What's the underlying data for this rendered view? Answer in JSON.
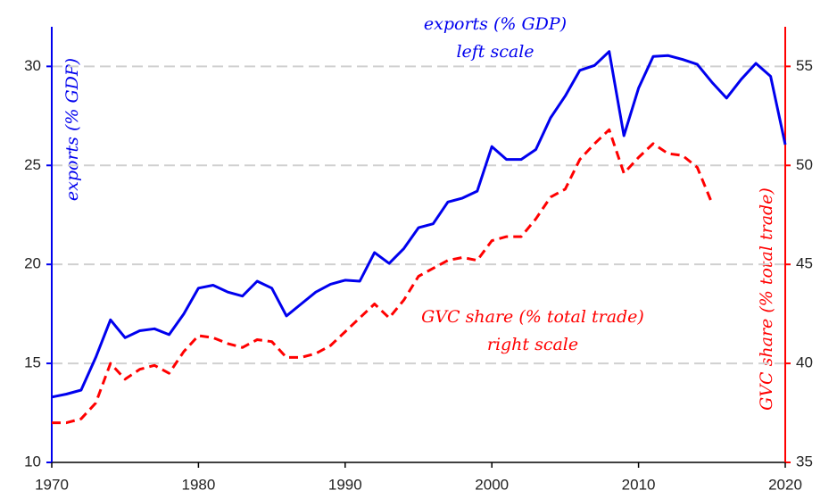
{
  "chart_data": {
    "type": "line",
    "x": [
      1970,
      1971,
      1972,
      1973,
      1974,
      1975,
      1976,
      1977,
      1978,
      1979,
      1980,
      1981,
      1982,
      1983,
      1984,
      1985,
      1986,
      1987,
      1988,
      1989,
      1990,
      1991,
      1992,
      1993,
      1994,
      1995,
      1996,
      1997,
      1998,
      1999,
      2000,
      2001,
      2002,
      2003,
      2004,
      2005,
      2006,
      2007,
      2008,
      2009,
      2010,
      2011,
      2012,
      2013,
      2014,
      2015,
      2016,
      2017,
      2018,
      2019,
      2020
    ],
    "series": [
      {
        "name": "exports (% GDP)",
        "color": "#0000ee",
        "style": "solid",
        "values": [
          13.3,
          13.45,
          13.65,
          15.3,
          17.2,
          16.3,
          16.65,
          16.75,
          16.45,
          17.5,
          18.8,
          18.95,
          18.6,
          18.4,
          19.15,
          18.8,
          17.4,
          18.0,
          18.6,
          19.0,
          19.2,
          19.15,
          20.6,
          20.05,
          20.8,
          21.85,
          22.05,
          23.15,
          23.35,
          23.7,
          25.95,
          25.3,
          25.3,
          25.8,
          27.4,
          28.5,
          29.8,
          30.05,
          30.75,
          26.5,
          28.9,
          30.5,
          30.55,
          30.35,
          30.1,
          29.2,
          28.4,
          29.35,
          30.15,
          29.5,
          26.05
        ]
      },
      {
        "name": "GVC share (% total trade)",
        "color": "#ff0000",
        "style": "dashed",
        "axis": "y2",
        "values": [
          37.0,
          37.0,
          37.2,
          38.0,
          40.0,
          39.2,
          39.7,
          39.9,
          39.5,
          40.6,
          41.4,
          41.3,
          41.0,
          40.8,
          41.2,
          41.1,
          40.3,
          40.3,
          40.5,
          40.9,
          41.6,
          42.3,
          43.0,
          42.3,
          43.2,
          44.4,
          44.8,
          45.2,
          45.35,
          45.2,
          46.2,
          46.4,
          46.4,
          47.3,
          48.4,
          48.8,
          50.3,
          51.1,
          51.8,
          49.6,
          50.4,
          51.1,
          50.6,
          50.5,
          49.9,
          48.1,
          null,
          null,
          null,
          null,
          null
        ]
      }
    ],
    "y_label": "exports (% GDP)",
    "y2_label": "GVC share (% total trade)",
    "annotations": [
      [
        "exports (% GDP)",
        "left scale"
      ],
      [
        "GVC share (% total trade)",
        "right scale"
      ]
    ],
    "xlim": [
      1970,
      2020
    ],
    "xticks": [
      1970,
      1980,
      1990,
      2000,
      2010,
      2020
    ],
    "ylim": [
      10,
      32
    ],
    "yticks": [
      10,
      15,
      20,
      25,
      30
    ],
    "y2lim": [
      35,
      57
    ],
    "y2ticks": [
      35,
      40,
      45,
      50,
      55
    ],
    "grid": true
  }
}
